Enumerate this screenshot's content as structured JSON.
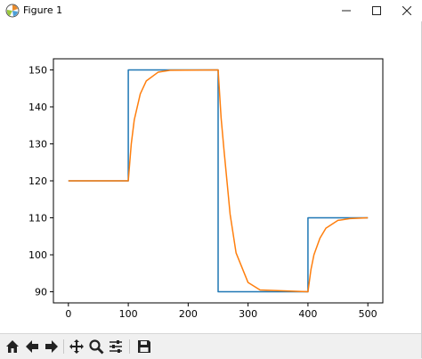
{
  "window": {
    "title": "Figure 1",
    "controls": [
      "minimize",
      "maximize",
      "close"
    ]
  },
  "toolbar": {
    "buttons": [
      {
        "name": "home-icon",
        "label": "Home"
      },
      {
        "name": "back-icon",
        "label": "Back"
      },
      {
        "name": "forward-icon",
        "label": "Forward"
      },
      {
        "name": "pan-icon",
        "label": "Pan"
      },
      {
        "name": "zoom-icon",
        "label": "Zoom"
      },
      {
        "name": "configure-subplots-icon",
        "label": "Configure subplots"
      },
      {
        "name": "save-icon",
        "label": "Save"
      }
    ]
  },
  "colors": {
    "series_blue": "#1f77b4",
    "series_orange": "#ff7f0e"
  },
  "chart_data": {
    "type": "line",
    "title": "",
    "xlabel": "",
    "ylabel": "",
    "xlim": [
      -25,
      525
    ],
    "ylim": [
      87,
      153
    ],
    "xticks": [
      0,
      100,
      200,
      300,
      400,
      500
    ],
    "yticks": [
      90,
      100,
      110,
      120,
      130,
      140,
      150
    ],
    "grid": false,
    "series": [
      {
        "color": "#1f77b4",
        "x": [
          0,
          100,
          100,
          250,
          250,
          400,
          400,
          500
        ],
        "y": [
          120,
          120,
          150,
          150,
          90,
          90,
          110,
          110
        ]
      },
      {
        "color": "#ff7f0e",
        "x": [
          0,
          100,
          105,
          110,
          120,
          130,
          150,
          170,
          250,
          255,
          260,
          270,
          280,
          300,
          320,
          400,
          405,
          410,
          420,
          430,
          450,
          470,
          500
        ],
        "y": [
          120,
          120,
          130,
          136.5,
          143.5,
          147,
          149.4,
          149.9,
          150,
          137,
          128,
          111,
          100.5,
          92.5,
          90.5,
          90,
          96,
          100,
          104.5,
          107.2,
          109.3,
          109.8,
          110
        ]
      }
    ]
  }
}
